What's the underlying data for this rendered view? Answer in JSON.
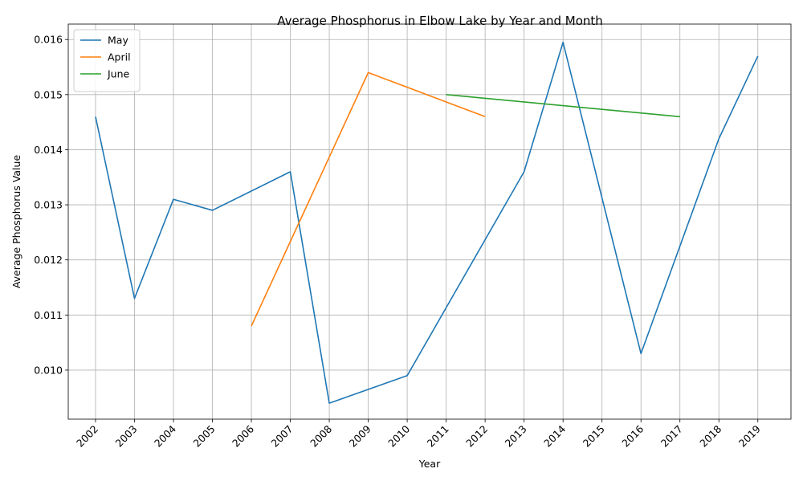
{
  "chart_data": {
    "type": "line",
    "title": "Average Phosphorus in Elbow Lake by Year and Month",
    "xlabel": "Year",
    "ylabel": "Average Phosphorus Value",
    "x": [
      2002,
      2003,
      2004,
      2005,
      2006,
      2007,
      2008,
      2009,
      2010,
      2011,
      2012,
      2013,
      2014,
      2015,
      2016,
      2017,
      2018,
      2019
    ],
    "xticks": [
      "2002",
      "2003",
      "2004",
      "2005",
      "2006",
      "2007",
      "2008",
      "2009",
      "2010",
      "2011",
      "2012",
      "2013",
      "2014",
      "2015",
      "2016",
      "2017",
      "2018",
      "2019"
    ],
    "xlim": [
      2001.3,
      2019.85
    ],
    "yticks": [
      "0.010",
      "0.011",
      "0.012",
      "0.013",
      "0.014",
      "0.015",
      "0.016"
    ],
    "ylim": [
      0.00911,
      0.01628
    ],
    "grid": true,
    "legend_position": "top-left",
    "series": [
      {
        "name": "May",
        "color": "#1f77b4",
        "points": [
          [
            2002,
            0.0146
          ],
          [
            2003,
            0.0113
          ],
          [
            2004,
            0.0131
          ],
          [
            2005,
            0.0129
          ],
          [
            2007,
            0.0136
          ],
          [
            2008,
            0.0094
          ],
          [
            2010,
            0.0099
          ],
          [
            2013,
            0.0136
          ],
          [
            2014,
            0.01595
          ],
          [
            2016,
            0.0103
          ],
          [
            2018,
            0.0142
          ],
          [
            2019,
            0.0157
          ]
        ]
      },
      {
        "name": "April",
        "color": "#ff7f0e",
        "points": [
          [
            2006,
            0.0108
          ],
          [
            2009,
            0.0154
          ],
          [
            2012,
            0.0146
          ]
        ]
      },
      {
        "name": "June",
        "color": "#2ca02c",
        "points": [
          [
            2011,
            0.015
          ],
          [
            2017,
            0.0146
          ]
        ]
      }
    ]
  }
}
